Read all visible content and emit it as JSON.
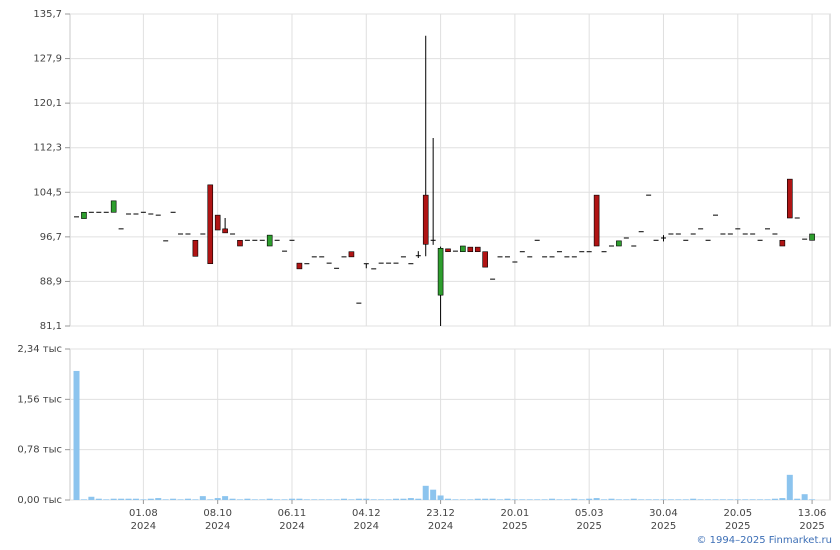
{
  "chart_data": {
    "type": "candlestick",
    "categories": [
      null,
      null,
      null,
      null,
      null,
      null,
      null,
      null,
      null,
      "01.08\n2024",
      null,
      null,
      null,
      null,
      null,
      null,
      null,
      null,
      null,
      "08.10\n2024",
      null,
      null,
      null,
      null,
      null,
      null,
      null,
      null,
      null,
      "06.11\n2024",
      null,
      null,
      null,
      null,
      null,
      null,
      null,
      null,
      null,
      "04.12\n2024",
      null,
      null,
      null,
      null,
      null,
      null,
      null,
      null,
      null,
      "23.12\n2024",
      null,
      null,
      null,
      null,
      null,
      null,
      null,
      null,
      null,
      "20.01\n2025",
      null,
      null,
      null,
      null,
      null,
      null,
      null,
      null,
      null,
      "05.03\n2025",
      null,
      null,
      null,
      null,
      null,
      null,
      null,
      null,
      null,
      "30.04\n2025",
      null,
      null,
      null,
      null,
      null,
      null,
      null,
      null,
      null,
      "20.05\n2025",
      null,
      null,
      null,
      null,
      null,
      null,
      null,
      null,
      null,
      "13.06\n2025"
    ],
    "open": [
      100.2,
      99.9,
      101.0,
      101.0,
      101.0,
      101.0,
      98.1,
      100.7,
      100.7,
      101.0,
      100.7,
      100.5,
      96.0,
      101.0,
      97.2,
      97.2,
      96.1,
      97.2,
      105.8,
      100.5,
      98.1,
      97.2,
      96.1,
      96.1,
      96.1,
      96.1,
      95.1,
      96.1,
      94.2,
      96.1,
      92.1,
      92.0,
      93.2,
      93.2,
      92.1,
      91.2,
      93.2,
      94.1,
      85.1,
      92.0,
      91.1,
      92.1,
      92.1,
      92.1,
      93.2,
      92.0,
      93.4,
      104.0,
      96.1,
      86.5,
      94.6,
      94.2,
      94.1,
      94.9,
      94.9,
      94.1,
      89.3,
      93.2,
      93.2,
      92.3,
      94.1,
      93.2,
      96.1,
      93.2,
      93.2,
      94.1,
      93.2,
      93.2,
      94.1,
      94.1,
      104.0,
      94.1,
      95.1,
      95.1,
      96.5,
      95.1,
      97.6,
      104.0,
      96.1,
      96.5,
      97.2,
      97.2,
      96.1,
      97.2,
      98.1,
      96.1,
      100.5,
      97.2,
      97.2,
      98.1,
      97.2,
      97.2,
      96.1,
      98.1,
      97.2,
      96.1,
      106.8,
      100.0,
      96.3,
      96.1
    ],
    "high": [
      100.2,
      101.0,
      101.0,
      101.0,
      101.0,
      103.0,
      98.1,
      100.7,
      100.7,
      101.0,
      100.7,
      100.5,
      96.0,
      101.0,
      97.2,
      97.2,
      96.1,
      97.2,
      105.8,
      100.5,
      100.0,
      97.2,
      96.1,
      96.1,
      96.1,
      96.1,
      97.0,
      96.1,
      94.2,
      96.1,
      92.1,
      92.0,
      93.2,
      93.2,
      92.1,
      91.2,
      93.2,
      94.1,
      85.1,
      92.0,
      91.1,
      92.1,
      92.1,
      92.1,
      93.2,
      92.0,
      94.2,
      131.9,
      114.0,
      95.0,
      94.6,
      94.2,
      95.1,
      94.9,
      94.9,
      94.1,
      89.3,
      93.2,
      93.2,
      92.3,
      94.1,
      93.2,
      96.1,
      93.2,
      93.2,
      94.1,
      93.2,
      93.2,
      94.1,
      94.1,
      104.0,
      94.1,
      95.1,
      96.0,
      96.5,
      95.1,
      97.6,
      104.0,
      96.1,
      97.0,
      97.2,
      97.2,
      96.1,
      97.2,
      98.1,
      96.1,
      100.5,
      97.2,
      97.2,
      98.1,
      97.2,
      97.2,
      96.1,
      98.1,
      97.2,
      96.1,
      106.8,
      100.0,
      96.3,
      97.2
    ],
    "low": [
      100.2,
      99.9,
      101.0,
      101.0,
      101.0,
      101.0,
      98.1,
      100.7,
      100.7,
      101.0,
      100.7,
      100.5,
      96.0,
      101.0,
      97.2,
      97.2,
      93.3,
      97.2,
      92.0,
      97.9,
      97.4,
      97.2,
      95.1,
      96.1,
      96.1,
      96.1,
      95.1,
      96.1,
      94.2,
      96.1,
      91.1,
      92.0,
      93.2,
      93.2,
      92.1,
      91.2,
      93.2,
      93.2,
      85.1,
      91.2,
      91.1,
      92.1,
      92.1,
      92.1,
      93.2,
      92.0,
      93.0,
      93.3,
      95.3,
      81.1,
      94.1,
      94.2,
      94.1,
      94.1,
      94.1,
      91.4,
      89.3,
      93.2,
      93.2,
      92.3,
      94.1,
      93.2,
      96.1,
      93.2,
      93.2,
      94.1,
      93.2,
      93.2,
      94.1,
      94.1,
      95.1,
      94.1,
      95.1,
      95.1,
      96.5,
      95.1,
      97.6,
      104.0,
      96.1,
      95.9,
      97.2,
      97.2,
      96.1,
      97.2,
      98.1,
      96.1,
      100.5,
      97.2,
      97.2,
      98.1,
      97.2,
      97.2,
      96.1,
      98.1,
      97.2,
      95.1,
      100.0,
      100.0,
      96.3,
      96.1
    ],
    "close": [
      100.2,
      101.0,
      101.0,
      101.0,
      101.0,
      103.0,
      98.1,
      100.7,
      100.7,
      101.0,
      100.7,
      100.5,
      96.0,
      101.0,
      97.2,
      97.2,
      93.3,
      97.2,
      92.0,
      97.9,
      97.4,
      97.2,
      95.1,
      96.1,
      96.1,
      96.1,
      97.0,
      96.1,
      94.2,
      96.1,
      91.1,
      92.0,
      93.2,
      93.2,
      92.1,
      91.2,
      93.2,
      93.2,
      85.1,
      92.0,
      91.1,
      92.1,
      92.1,
      92.1,
      93.2,
      92.0,
      93.4,
      95.4,
      96.1,
      94.7,
      94.1,
      94.2,
      95.1,
      94.1,
      94.1,
      91.4,
      89.3,
      93.2,
      93.2,
      92.3,
      94.1,
      93.2,
      96.1,
      93.2,
      93.2,
      94.1,
      93.2,
      93.2,
      94.1,
      94.1,
      95.1,
      94.1,
      95.1,
      96.0,
      96.5,
      95.1,
      97.6,
      104.0,
      96.1,
      96.5,
      97.2,
      97.2,
      96.1,
      97.2,
      98.1,
      96.1,
      100.5,
      97.2,
      97.2,
      98.1,
      97.2,
      97.2,
      96.1,
      98.1,
      97.2,
      95.1,
      100.0,
      100.0,
      96.3,
      97.2
    ],
    "up_color": "#2e9e2e",
    "down_color": "#b01414",
    "flat_color": "#000000",
    "ylim": [
      81.1,
      135.7
    ],
    "yticks": [
      {
        "value": 81.1,
        "label": "81,1"
      },
      {
        "value": 88.9,
        "label": "88,9"
      },
      {
        "value": 96.7,
        "label": "96,7"
      },
      {
        "value": 104.5,
        "label": "104,5"
      },
      {
        "value": 112.3,
        "label": "112,3"
      },
      {
        "value": 120.1,
        "label": "120,1"
      },
      {
        "value": 127.9,
        "label": "127,9"
      },
      {
        "value": 135.7,
        "label": "135,7"
      }
    ],
    "grid": true,
    "volume": {
      "color": "#8cc4ee",
      "values": [
        2.0,
        0.01,
        0.05,
        0.02,
        0.01,
        0.02,
        0.02,
        0.02,
        0.02,
        0.01,
        0.02,
        0.03,
        0.01,
        0.02,
        0.01,
        0.02,
        0.01,
        0.06,
        0.01,
        0.03,
        0.06,
        0.02,
        0.01,
        0.02,
        0.01,
        0.01,
        0.02,
        0.01,
        0.01,
        0.02,
        0.02,
        0.01,
        0.01,
        0.01,
        0.01,
        0.01,
        0.02,
        0.01,
        0.02,
        0.02,
        0.01,
        0.01,
        0.01,
        0.02,
        0.02,
        0.03,
        0.02,
        0.22,
        0.16,
        0.07,
        0.02,
        0.01,
        0.01,
        0.01,
        0.02,
        0.02,
        0.02,
        0.01,
        0.02,
        0.01,
        0.01,
        0.01,
        0.01,
        0.01,
        0.02,
        0.01,
        0.01,
        0.02,
        0.01,
        0.02,
        0.03,
        0.01,
        0.02,
        0.01,
        0.01,
        0.02,
        0.01,
        0.01,
        0.01,
        0.01,
        0.01,
        0.01,
        0.01,
        0.02,
        0.01,
        0.01,
        0.01,
        0.01,
        0.01,
        0.01,
        0.01,
        0.01,
        0.01,
        0.01,
        0.02,
        0.03,
        0.39,
        0.02,
        0.09,
        0.01
      ],
      "ylim": [
        0,
        2.34
      ],
      "yticks": [
        {
          "value": 0,
          "label": "0,00 тыс"
        },
        {
          "value": 0.78,
          "label": "0,78 тыс"
        },
        {
          "value": 1.56,
          "label": "1,56 тыс"
        },
        {
          "value": 2.34,
          "label": "2,34 тыс"
        }
      ]
    }
  },
  "footer": "© 1994–2025 Finmarket.ru"
}
